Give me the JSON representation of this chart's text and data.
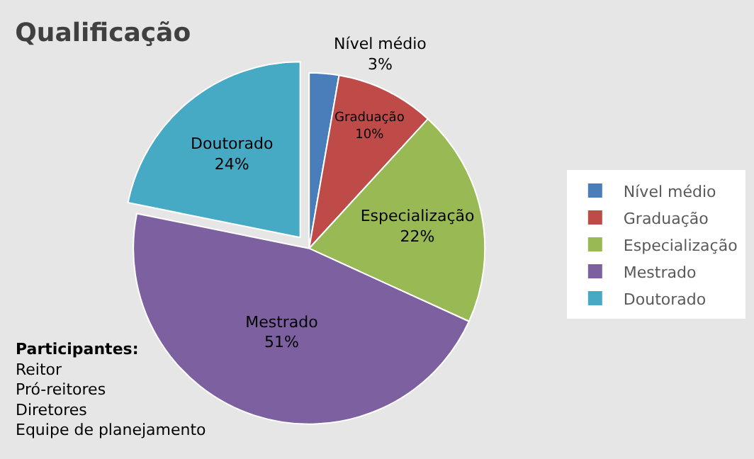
{
  "chart_data": {
    "type": "pie",
    "title": "Qualificação",
    "categories": [
      "Nível médio",
      "Graduação",
      "Especialização",
      "Mestrado",
      "Doutorado"
    ],
    "values": [
      3,
      10,
      22,
      51,
      24
    ],
    "value_labels": [
      "3%",
      "10%",
      "22%",
      "51%",
      "24%"
    ],
    "colors": [
      "#4a7ebb",
      "#be4b48",
      "#98b954",
      "#7d60a0",
      "#46aac5"
    ],
    "legend": "right",
    "annotations": [
      "Participantes:\nReitor\nPró-reitores\nDiretores\nEquipe de planejamento"
    ]
  }
}
